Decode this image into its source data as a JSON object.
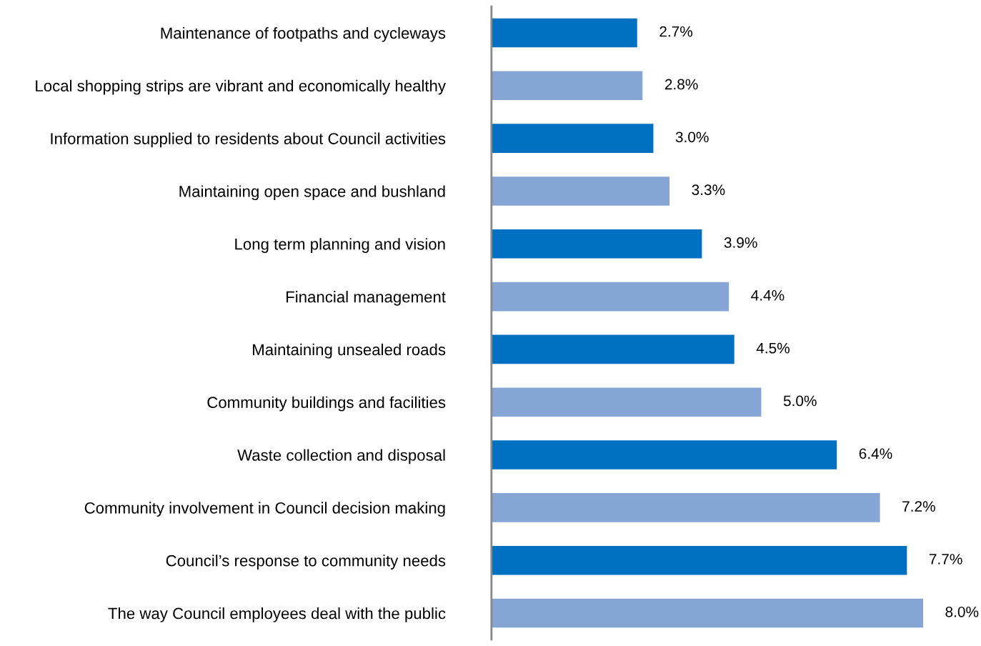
{
  "chart_data": {
    "type": "bar",
    "orientation": "horizontal",
    "categories": [
      "Maintenance of footpaths and cycleways",
      "Local shopping strips are vibrant and economically healthy",
      "Information supplied to residents about Council activities",
      "Maintaining open space and bushland",
      "Long term planning and vision",
      "Financial management",
      "Maintaining unsealed roads",
      "Community buildings and facilities",
      "Waste collection and disposal",
      "Community involvement in Council decision making",
      "Council’s response to community needs",
      "The way Council employees deal with the public"
    ],
    "values": [
      2.7,
      2.8,
      3.0,
      3.3,
      3.9,
      4.4,
      4.5,
      5.0,
      6.4,
      7.2,
      7.7,
      8.0
    ],
    "colors": [
      "#0070c0",
      "#85a5d5",
      "#0070c0",
      "#85a5d5",
      "#0070c0",
      "#85a5d5",
      "#0070c0",
      "#85a5d5",
      "#0070c0",
      "#85a5d5",
      "#0070c0",
      "#85a5d5"
    ],
    "value_labels": [
      "2.7%",
      "2.8%",
      "3.0%",
      "3.3%",
      "3.9%",
      "4.4%",
      "4.5%",
      "5.0%",
      "6.4%",
      "7.2%",
      "7.7%",
      "8.0%"
    ],
    "grid": false,
    "legend": false
  }
}
